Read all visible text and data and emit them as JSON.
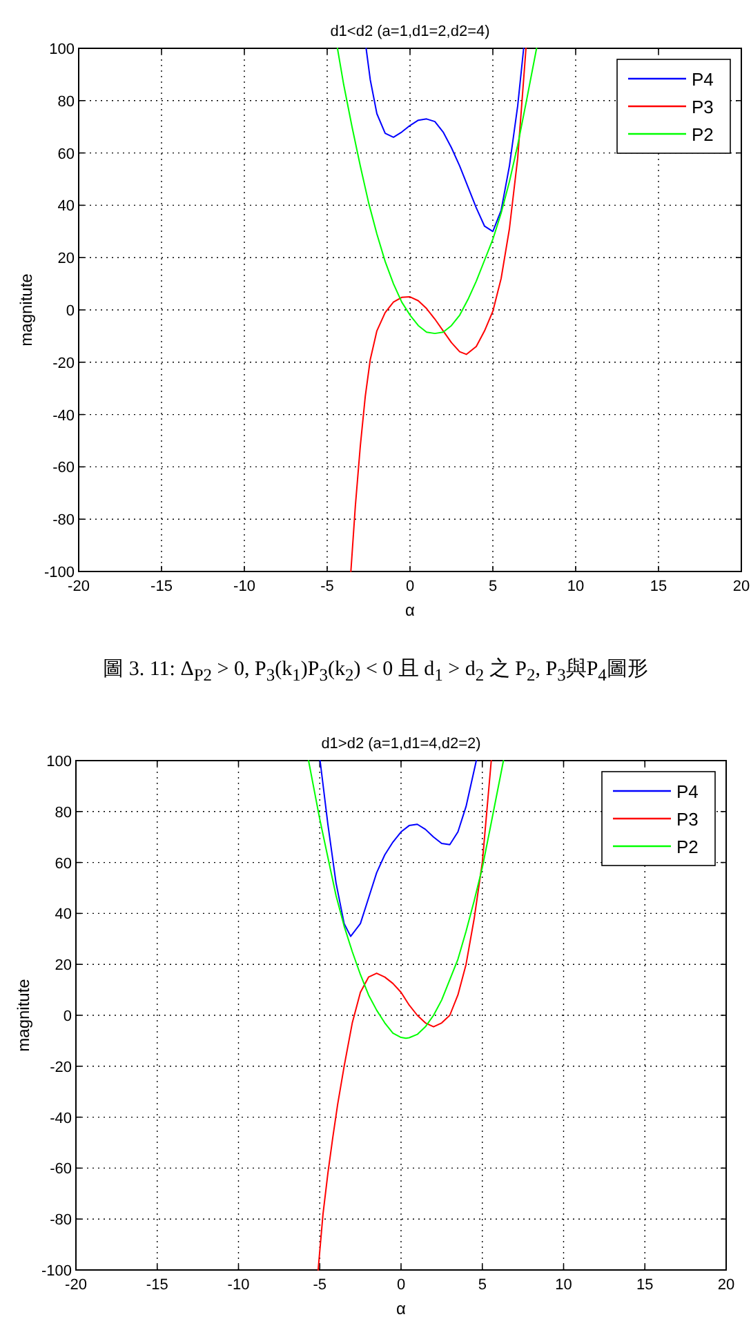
{
  "chart_data": [
    {
      "type": "line",
      "title": "d1<d2 (a=1,d1=2,d2=4)",
      "xlabel": "α",
      "ylabel": "magnitute",
      "xlim": [
        -20,
        20
      ],
      "ylim": [
        -100,
        100
      ],
      "xticks": [
        -20,
        -15,
        -10,
        -5,
        0,
        5,
        10,
        15,
        20
      ],
      "yticks": [
        -100,
        -80,
        -60,
        -40,
        -20,
        0,
        20,
        40,
        60,
        80,
        100
      ],
      "grid": true,
      "legend": "top right",
      "line_style": "solid",
      "annotations": [
        "圖 3. 11: Δ$_{P2}$ > 0, P$_{3}$(k$_{1}$)P$_{3}$(k$_{2}$) < 0 且 d$_{1}$ > d$_{2}$ 之 P$_{2}$, P$_{3}$與P$_{4}$圖形"
      ],
      "series": [
        {
          "name": "P4",
          "color": "#0000ff",
          "x": [
            -2.65,
            -2.4,
            -2,
            -1.5,
            -1,
            -0.5,
            0,
            0.5,
            1,
            1.5,
            2,
            2.5,
            3,
            3.5,
            4,
            4.5,
            5,
            5.5,
            6,
            6.5,
            6.86
          ],
          "values": [
            100,
            88,
            75,
            67.5,
            66,
            68,
            70.5,
            72.5,
            73,
            72,
            68,
            62,
            55,
            47,
            39,
            32,
            30,
            38,
            55,
            78,
            100
          ]
        },
        {
          "name": "P3",
          "color": "#ff0000",
          "x": [
            -3.57,
            -3.3,
            -3,
            -2.7,
            -2.4,
            -2,
            -1.5,
            -1,
            -0.5,
            0,
            0.5,
            1,
            1.5,
            2,
            2.5,
            3,
            3.4,
            4,
            4.5,
            5,
            5.5,
            6,
            6.5,
            7
          ],
          "values": [
            -100,
            -75,
            -52,
            -33,
            -19,
            -8,
            -1,
            3,
            4.8,
            5,
            3.5,
            0.5,
            -3.5,
            -8,
            -12.5,
            -16,
            -17,
            -14,
            -8,
            -0.5,
            12,
            31,
            58,
            100
          ]
        },
        {
          "name": "P2",
          "color": "#00ff00",
          "x": [
            -4.38,
            -4,
            -3.5,
            -3,
            -2.5,
            -2,
            -1.5,
            -1,
            -0.5,
            0,
            0.5,
            1,
            1.5,
            2,
            2.5,
            3,
            3.5,
            4,
            4.5,
            5,
            5.5,
            6,
            6.5,
            7,
            7.64
          ],
          "values": [
            100,
            86,
            70,
            55,
            41,
            29,
            18.5,
            10,
            3,
            -2,
            -6,
            -8.5,
            -9,
            -8.5,
            -6,
            -2,
            4,
            11,
            19,
            27,
            37,
            49,
            63,
            79,
            100
          ]
        }
      ]
    },
    {
      "type": "line",
      "title": "d1>d2 (a=1,d1=4,d2=2)",
      "xlabel": "α",
      "ylabel": "magnitute",
      "xlim": [
        -20,
        20
      ],
      "ylim": [
        -100,
        100
      ],
      "xticks": [
        -20,
        -15,
        -10,
        -5,
        0,
        5,
        10,
        15,
        20
      ],
      "yticks": [
        -100,
        -80,
        -60,
        -40,
        -20,
        0,
        20,
        40,
        60,
        80,
        100
      ],
      "grid": true,
      "legend": "top right",
      "line_style": "solid",
      "series": [
        {
          "name": "P4",
          "color": "#0000ff",
          "x": [
            -4.98,
            -4.5,
            -4,
            -3.5,
            -3.1,
            -2.5,
            -2,
            -1.5,
            -1,
            -0.5,
            0,
            0.5,
            1,
            1.5,
            2,
            2.5,
            3,
            3.5,
            4,
            4.63
          ],
          "values": [
            100,
            75,
            52,
            36,
            31,
            36,
            46,
            56,
            63,
            68,
            72,
            74.5,
            75,
            73,
            70,
            67.5,
            67,
            72,
            82,
            100
          ]
        },
        {
          "name": "P3",
          "color": "#ff0000",
          "x": [
            -5.1,
            -4.8,
            -4.5,
            -4.2,
            -3.9,
            -3.5,
            -3,
            -2.5,
            -2,
            -1.5,
            -1,
            -0.5,
            0,
            0.5,
            1,
            1.5,
            2,
            2.5,
            3,
            3.5,
            4,
            4.5,
            5,
            5.55
          ],
          "values": [
            -100,
            -78,
            -62,
            -48,
            -35,
            -20,
            -3,
            9,
            15,
            16.5,
            15,
            12.5,
            9,
            4,
            0,
            -3,
            -4.5,
            -3,
            0,
            8,
            20,
            38,
            60,
            100
          ]
        },
        {
          "name": "P2",
          "color": "#00ff00",
          "x": [
            -5.69,
            -5,
            -4.5,
            -4,
            -3.5,
            -3,
            -2.5,
            -2,
            -1.5,
            -1,
            -0.5,
            0,
            0.3,
            0.5,
            1,
            1.5,
            2,
            2.5,
            3,
            3.5,
            4,
            4.5,
            5,
            5.5,
            6.3
          ],
          "values": [
            100,
            77,
            62,
            47,
            35,
            25,
            16,
            8,
            2,
            -3,
            -7,
            -8.7,
            -9,
            -8.8,
            -7.5,
            -4.5,
            0,
            6,
            14,
            22,
            33,
            45,
            58,
            74,
            100
          ]
        }
      ]
    }
  ]
}
